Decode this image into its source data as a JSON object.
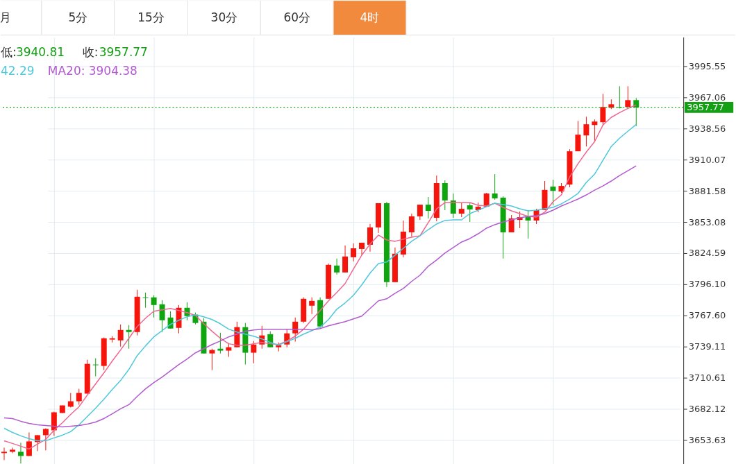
{
  "chart_data": {
    "type": "candlestick",
    "categories": [
      null,
      null,
      null,
      null,
      null,
      null,
      null,
      null,
      null,
      null,
      null,
      null,
      null,
      null,
      null,
      null,
      null,
      null,
      null,
      null,
      null,
      null,
      null,
      null,
      null,
      null,
      null,
      null,
      null,
      null,
      null,
      null,
      null,
      null,
      null,
      null,
      null,
      null,
      null,
      null,
      null,
      null,
      null,
      null,
      null,
      null,
      null,
      null,
      null,
      null,
      null,
      null,
      null,
      null,
      null,
      null,
      null,
      null,
      null,
      null,
      null,
      null,
      null,
      null,
      null,
      null,
      null,
      null,
      null,
      null,
      null,
      null,
      null,
      null,
      null,
      null,
      null
    ],
    "ohlc": [
      [
        3641.7,
        3646.7,
        3635.3,
        3642.9
      ],
      [
        3642.9,
        3646.7,
        3641.7,
        3644.8
      ],
      [
        3642.9,
        3651.1,
        3632.2,
        3639.1
      ],
      [
        3639.1,
        3660.6,
        3639.1,
        3652.4
      ],
      [
        3651.8,
        3658.1,
        3643.5,
        3658.1
      ],
      [
        3658.1,
        3664.4,
        3644.2,
        3663.8
      ],
      [
        3662.5,
        3679.6,
        3657.5,
        3679.0
      ],
      [
        3678.4,
        3685.3,
        3678.4,
        3685.3
      ],
      [
        3684.1,
        3696.7,
        3683.4,
        3689.1
      ],
      [
        3689.1,
        3700.5,
        3685.9,
        3696.7
      ],
      [
        3696.1,
        3727.1,
        3696.1,
        3723.3
      ],
      [
        3722.7,
        3728.4,
        3711.9,
        3722.1
      ],
      [
        3721.4,
        3747.4,
        3717.6,
        3746.7
      ],
      [
        3745.5,
        3748.6,
        3742.9,
        3746.7
      ],
      [
        3744.8,
        3759.4,
        3739.1,
        3754.3
      ],
      [
        3754.3,
        3758.8,
        3737.2,
        3752.4
      ],
      [
        3752.4,
        3791.1,
        3749.3,
        3784.7
      ],
      [
        3784.1,
        3788.5,
        3774.6,
        3783.5
      ],
      [
        3784.1,
        3786.0,
        3765.7,
        3777.1
      ],
      [
        3777.8,
        3781.6,
        3752.4,
        3763.2
      ],
      [
        3765.7,
        3771.4,
        3755.6,
        3755.6
      ],
      [
        3756.2,
        3777.1,
        3751.2,
        3774.6
      ],
      [
        3774.6,
        3779.7,
        3763.2,
        3767.0
      ],
      [
        3768.3,
        3770.2,
        3759.4,
        3760.7
      ],
      [
        3761.9,
        3765.1,
        3732.8,
        3732.8
      ],
      [
        3732.8,
        3737.2,
        3717.6,
        3736.0
      ],
      [
        3737.2,
        3751.8,
        3732.8,
        3735.4
      ],
      [
        3735.4,
        3742.3,
        3729.7,
        3738.5
      ],
      [
        3738.5,
        3761.9,
        3738.5,
        3756.9
      ],
      [
        3756.9,
        3760.7,
        3722.7,
        3733.5
      ],
      [
        3733.5,
        3744.2,
        3723.9,
        3741.0
      ],
      [
        3741.0,
        3758.1,
        3737.2,
        3749.3
      ],
      [
        3750.5,
        3753.1,
        3738.5,
        3738.5
      ],
      [
        3738.5,
        3742.9,
        3734.7,
        3740.4
      ],
      [
        3741.0,
        3755.0,
        3738.5,
        3751.2
      ],
      [
        3751.2,
        3765.7,
        3743.6,
        3761.9
      ],
      [
        3761.9,
        3784.1,
        3760.7,
        3782.8
      ],
      [
        3776.5,
        3784.1,
        3768.9,
        3780.9
      ],
      [
        3781.6,
        3784.1,
        3756.2,
        3757.5
      ],
      [
        3782.8,
        3815.1,
        3782.8,
        3813.9
      ],
      [
        3813.2,
        3819.6,
        3805.0,
        3806.9
      ],
      [
        3806.9,
        3831.6,
        3806.9,
        3821.5
      ],
      [
        3820.8,
        3833.5,
        3817.0,
        3829.0
      ],
      [
        3828.4,
        3834.1,
        3822.7,
        3834.1
      ],
      [
        3832.2,
        3851.2,
        3825.9,
        3848.1
      ],
      [
        3848.1,
        3870.2,
        3843.0,
        3870.2
      ],
      [
        3870.2,
        3871.5,
        3793.6,
        3798.0
      ],
      [
        3798.0,
        3829.7,
        3798.0,
        3824.0
      ],
      [
        3823.3,
        3854.4,
        3820.8,
        3844.2
      ],
      [
        3843.6,
        3860.7,
        3839.8,
        3858.2
      ],
      [
        3858.2,
        3868.9,
        3855.0,
        3868.9
      ],
      [
        3868.9,
        3875.9,
        3856.3,
        3863.2
      ],
      [
        3856.9,
        3895.5,
        3853.7,
        3888.6
      ],
      [
        3888.6,
        3891.1,
        3863.9,
        3872.7
      ],
      [
        3872.7,
        3879.1,
        3856.9,
        3860.7
      ],
      [
        3860.7,
        3870.2,
        3857.5,
        3865.1
      ],
      [
        3868.3,
        3870.2,
        3853.1,
        3864.5
      ],
      [
        3863.9,
        3870.8,
        3862.0,
        3867.0
      ],
      [
        3867.0,
        3879.7,
        3867.0,
        3879.1
      ],
      [
        3879.1,
        3896.8,
        3873.4,
        3874.6
      ],
      [
        3875.3,
        3876.5,
        3819.6,
        3843.6
      ],
      [
        3843.6,
        3859.4,
        3843.6,
        3856.3
      ],
      [
        3855.0,
        3862.6,
        3847.4,
        3857.5
      ],
      [
        3857.5,
        3863.9,
        3837.9,
        3854.4
      ],
      [
        3854.4,
        3865.1,
        3851.2,
        3863.9
      ],
      [
        3863.9,
        3890.5,
        3863.9,
        3882.4
      ],
      [
        3885.4,
        3891.7,
        3868.3,
        3881.5
      ],
      [
        3880.9,
        3888.6,
        3879.7,
        3886.0
      ],
      [
        3887.3,
        3919.6,
        3884.8,
        3917.7
      ],
      [
        3917.7,
        3945.5,
        3917.7,
        3932.9
      ],
      [
        3932.2,
        3949.3,
        3922.1,
        3942.4
      ],
      [
        3941.7,
        3946.8,
        3927.2,
        3944.9
      ],
      [
        3944.3,
        3970.2,
        3941.1,
        3958.2
      ],
      [
        3957.6,
        3965.2,
        3956.3,
        3960.7
      ],
      [
        3958.2,
        3977.2,
        3956.9,
        3957.6
      ],
      [
        3958.2,
        3977.2,
        3958.2,
        3964.5
      ],
      [
        3964.5,
        3966.4,
        3940.81,
        3957.77
      ]
    ],
    "colors": [
      "#f5150c",
      "#f5150c",
      "#0fa50f",
      "#f5150c",
      "#f5150c",
      "#f5150c",
      "#f5150c",
      "#f5150c",
      "#f5150c",
      "#f5150c",
      "#f5150c",
      "#0fa50f",
      "#f5150c",
      "#f5150c",
      "#f5150c",
      "#0fa50f",
      "#f5150c",
      "#0fa50f",
      "#0fa50f",
      "#0fa50f",
      "#0fa50f",
      "#f5150c",
      "#0fa50f",
      "#0fa50f",
      "#0fa50f",
      "#f5150c",
      "#0fa50f",
      "#f5150c",
      "#f5150c",
      "#0fa50f",
      "#f5150c",
      "#f5150c",
      "#0fa50f",
      "#f5150c",
      "#f5150c",
      "#f5150c",
      "#f5150c",
      "#f5150c",
      "#0fa50f",
      "#f5150c",
      "#0fa50f",
      "#f5150c",
      "#f5150c",
      "#f5150c",
      "#f5150c",
      "#f5150c",
      "#0fa50f",
      "#f5150c",
      "#f5150c",
      "#f5150c",
      "#f5150c",
      "#0fa50f",
      "#f5150c",
      "#0fa50f",
      "#0fa50f",
      "#f5150c",
      "#0fa50f",
      "#f5150c",
      "#f5150c",
      "#0fa50f",
      "#0fa50f",
      "#f5150c",
      "#f5150c",
      "#0fa50f",
      "#f5150c",
      "#f5150c",
      "#0fa50f",
      "#f5150c",
      "#f5150c",
      "#f5150c",
      "#f5150c",
      "#f5150c",
      "#f5150c",
      "#f5150c",
      "#0fa50f",
      "#f5150c",
      "#0fa50f"
    ],
    "series": [
      {
        "type": "line",
        "color": "#f0668f",
        "values": [
          3653.0,
          3650.5,
          3648.0,
          3645.4,
          3649.9,
          3654.3,
          3662.5,
          3669.5,
          3677.1,
          3684.1,
          3694.8,
          3705.0,
          3715.1,
          3725.9,
          3736.0,
          3746.7,
          3757.5,
          3765.1,
          3771.4,
          3772.7,
          3774.0,
          3772.1,
          3770.2,
          3767.6,
          3760.0,
          3753.1,
          3746.7,
          3741.7,
          3740.4,
          3740.4,
          3741.7,
          3742.9,
          3741.7,
          3741.0,
          3744.2,
          3748.6,
          3755.0,
          3763.8,
          3772.1,
          3780.9,
          3788.5,
          3796.8,
          3810.1,
          3822.7,
          3832.8,
          3841.1,
          3836.6,
          3835.4,
          3837.3,
          3839.2,
          3840.4,
          3852.5,
          3865.1,
          3870.8,
          3870.8,
          3870.8,
          3870.8,
          3868.3,
          3867.7,
          3870.2,
          3866.4,
          3863.2,
          3860.7,
          3858.2,
          3857.5,
          3862.0,
          3871.5,
          3877.8,
          3894.3,
          3906.3,
          3917.0,
          3926.5,
          3941.7,
          3948.7,
          3953.1,
          3956.9,
          3960.1
        ]
      },
      {
        "type": "line",
        "color": "#4fc8dc",
        "values": [
          3664.4,
          3660.6,
          3657.5,
          3654.9,
          3653.0,
          3653.0,
          3655.6,
          3658.1,
          3661.3,
          3667.6,
          3675.2,
          3682.8,
          3691.0,
          3699.9,
          3708.1,
          3718.3,
          3730.9,
          3739.8,
          3748.0,
          3753.7,
          3759.4,
          3763.2,
          3766.4,
          3768.3,
          3766.4,
          3763.8,
          3760.0,
          3755.0,
          3752.4,
          3750.5,
          3748.6,
          3746.1,
          3742.9,
          3740.4,
          3743.6,
          3746.7,
          3750.5,
          3753.7,
          3756.9,
          3763.8,
          3773.3,
          3779.0,
          3786.0,
          3795.5,
          3806.3,
          3815.1,
          3816.4,
          3822.7,
          3829.0,
          3835.4,
          3840.4,
          3846.1,
          3851.2,
          3854.4,
          3855.0,
          3855.0,
          3860.7,
          3863.9,
          3867.0,
          3870.2,
          3868.9,
          3867.7,
          3865.1,
          3863.2,
          3863.9,
          3865.1,
          3866.4,
          3869.6,
          3874.0,
          3879.1,
          3889.2,
          3896.8,
          3909.4,
          3922.1,
          3929.7,
          3936.0,
          3942.3
        ]
      },
      {
        "type": "line",
        "color": "#b25bd0",
        "values": [
          3673.9,
          3673.3,
          3670.8,
          3668.9,
          3667.6,
          3667.0,
          3666.3,
          3665.7,
          3666.3,
          3667.0,
          3668.2,
          3670.1,
          3673.3,
          3677.7,
          3682.2,
          3686.0,
          3693.6,
          3700.5,
          3706.2,
          3711.3,
          3717.0,
          3722.7,
          3727.8,
          3733.4,
          3737.2,
          3741.0,
          3744.2,
          3748.0,
          3750.5,
          3753.1,
          3754.3,
          3755.0,
          3755.0,
          3755.0,
          3755.0,
          3755.0,
          3755.0,
          3754.3,
          3755.6,
          3758.1,
          3760.0,
          3761.9,
          3764.5,
          3767.0,
          3774.0,
          3780.9,
          3782.8,
          3787.9,
          3792.3,
          3798.7,
          3804.4,
          3812.6,
          3818.3,
          3824.6,
          3829.7,
          3834.7,
          3837.9,
          3842.3,
          3847.4,
          3850.6,
          3853.1,
          3855.0,
          3856.9,
          3858.2,
          3858.8,
          3860.7,
          3863.9,
          3867.7,
          3870.8,
          3874.0,
          3877.8,
          3882.2,
          3886.0,
          3890.5,
          3895.5,
          3900.0,
          3904.4
        ]
      }
    ],
    "ylim": [
      3631.5,
      4022.1
    ],
    "yticks": [
      3653.63,
      3682.12,
      3710.61,
      3739.11,
      {
        "value": 3767.6,
        "label": "3767.60"
      },
      {
        "value": 3796.1,
        "label": "3796.10"
      },
      3824.59,
      3853.08,
      3881.58,
      3910.07,
      3938.56,
      3967.06,
      3995.55
    ],
    "grid": true,
    "tick_labels": "y",
    "ref_lines": [
      {
        "axis": "y",
        "value": 3957.77,
        "label": "3957.77",
        "color": "#14a014",
        "line_style": "dotted"
      }
    ],
    "annotations": [
      "月",
      "5分",
      "15分",
      "30分",
      "60分",
      "4时",
      "低:",
      "3940.81",
      "收:",
      "3957.77",
      "42.29",
      "MA20:  3904.38"
    ]
  }
}
